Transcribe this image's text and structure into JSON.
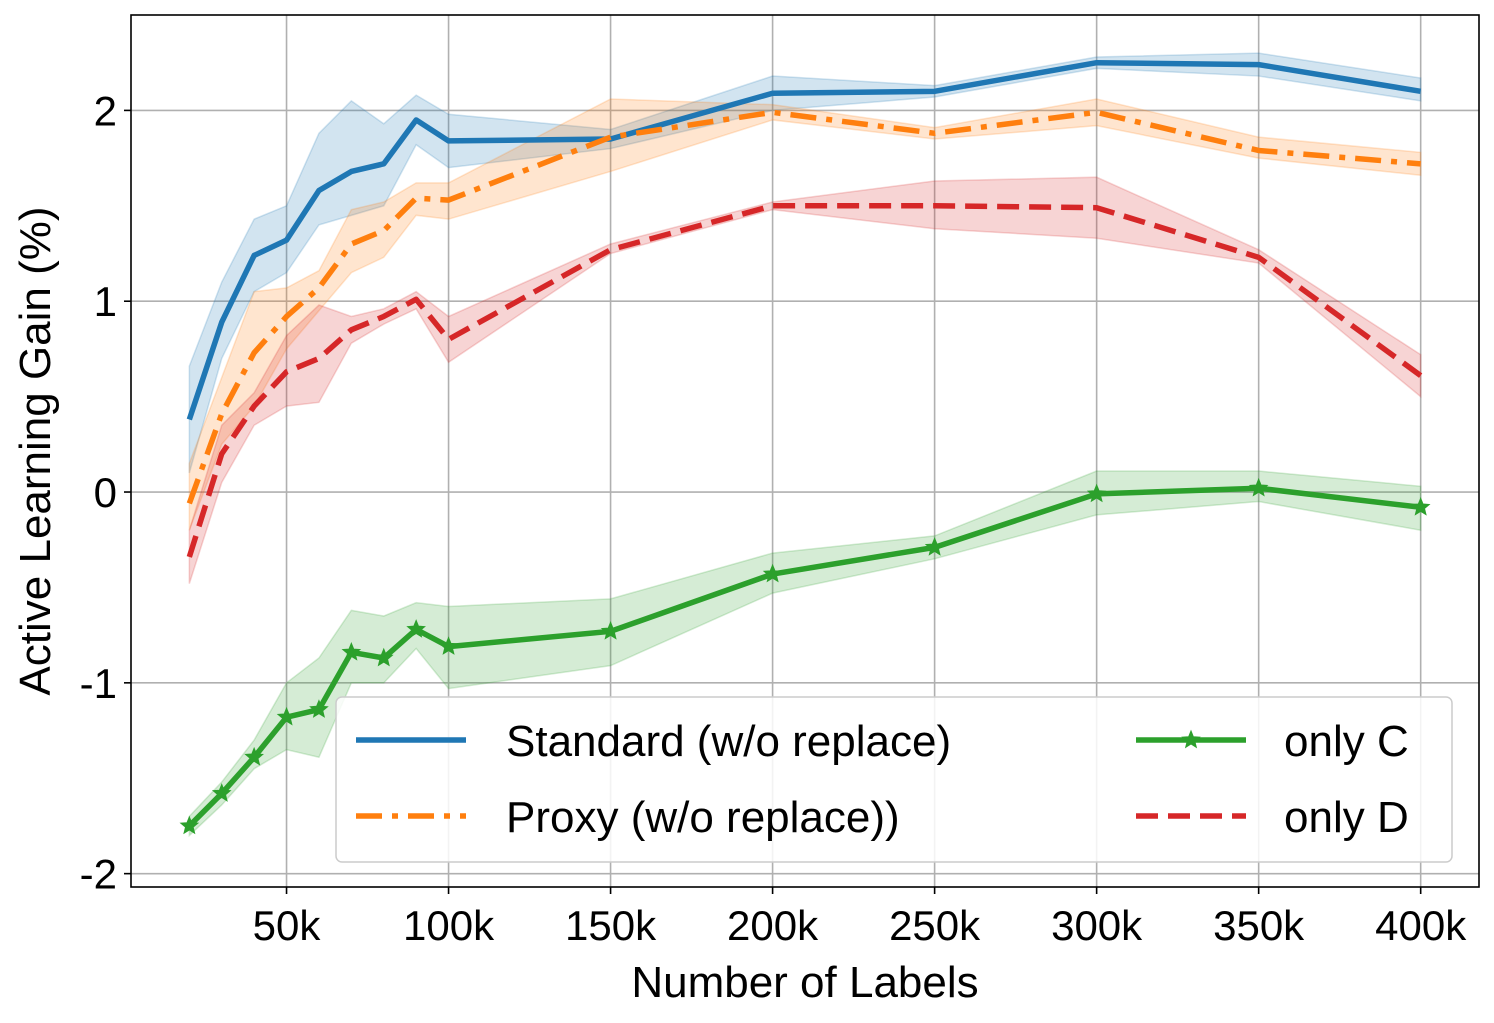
{
  "chart_data": {
    "type": "line",
    "title": "",
    "xlabel": "Number of Labels",
    "ylabel": "Active Learning Gain (%)",
    "xlim": [
      2000,
      418000
    ],
    "ylim": [
      -2.07,
      2.5
    ],
    "grid": true,
    "legend_position": "bottom-right",
    "x_ticks": [
      {
        "value": 50000,
        "label": "50k"
      },
      {
        "value": 100000,
        "label": "100k"
      },
      {
        "value": 150000,
        "label": "150k"
      },
      {
        "value": 200000,
        "label": "200k"
      },
      {
        "value": 250000,
        "label": "250k"
      },
      {
        "value": 300000,
        "label": "300k"
      },
      {
        "value": 350000,
        "label": "350k"
      },
      {
        "value": 400000,
        "label": "400k"
      }
    ],
    "y_ticks": [
      {
        "value": 2,
        "label": "2"
      },
      {
        "value": 1,
        "label": "1"
      },
      {
        "value": 0,
        "label": "0"
      },
      {
        "value": -1,
        "label": "-1"
      },
      {
        "value": -2,
        "label": "-2"
      }
    ],
    "series": [
      {
        "id": "standard",
        "name": "Standard (w/o replace)",
        "color": "#1f77b4",
        "dash": "solid",
        "marker": "none",
        "x": [
          20000,
          30000,
          40000,
          50000,
          60000,
          70000,
          80000,
          90000,
          100000,
          150000,
          200000,
          250000,
          300000,
          350000,
          400000
        ],
        "values": [
          0.38,
          0.89,
          1.24,
          1.32,
          1.58,
          1.68,
          1.72,
          1.95,
          1.84,
          1.85,
          2.09,
          2.1,
          2.25,
          2.24,
          2.1
        ],
        "lower": [
          0.1,
          0.7,
          1.05,
          1.15,
          1.4,
          1.45,
          1.5,
          1.82,
          1.7,
          1.8,
          2.0,
          2.07,
          2.22,
          2.18,
          2.05
        ],
        "upper": [
          0.66,
          1.1,
          1.43,
          1.5,
          1.88,
          2.05,
          1.93,
          2.08,
          1.98,
          1.9,
          2.18,
          2.13,
          2.28,
          2.3,
          2.17
        ]
      },
      {
        "id": "proxy",
        "name": "Proxy (w/o replace))",
        "color": "#ff7f0e",
        "dash": "dashdot",
        "marker": "none",
        "x": [
          20000,
          30000,
          40000,
          50000,
          60000,
          70000,
          80000,
          90000,
          100000,
          150000,
          200000,
          250000,
          300000,
          350000,
          400000
        ],
        "values": [
          -0.06,
          0.41,
          0.73,
          0.92,
          1.07,
          1.3,
          1.37,
          1.54,
          1.53,
          1.86,
          1.99,
          1.88,
          1.99,
          1.79,
          1.72
        ],
        "lower": [
          -0.2,
          0.25,
          0.45,
          0.75,
          0.95,
          1.15,
          1.23,
          1.45,
          1.43,
          1.68,
          1.95,
          1.85,
          1.92,
          1.75,
          1.66
        ],
        "upper": [
          0.15,
          0.6,
          1.05,
          1.07,
          1.16,
          1.48,
          1.52,
          1.62,
          1.62,
          2.06,
          2.03,
          1.91,
          2.06,
          1.86,
          1.78
        ]
      },
      {
        "id": "only_d",
        "name": "only D",
        "color": "#d62728",
        "dash": "dashed",
        "marker": "none",
        "x": [
          20000,
          30000,
          40000,
          50000,
          60000,
          70000,
          80000,
          90000,
          100000,
          150000,
          200000,
          250000,
          300000,
          350000,
          400000
        ],
        "values": [
          -0.34,
          0.2,
          0.45,
          0.63,
          0.7,
          0.85,
          0.92,
          1.01,
          0.8,
          1.27,
          1.5,
          1.5,
          1.49,
          1.23,
          0.61
        ],
        "lower": [
          -0.48,
          0.05,
          0.35,
          0.45,
          0.47,
          0.78,
          0.88,
          0.96,
          0.68,
          1.25,
          1.48,
          1.38,
          1.33,
          1.2,
          0.5
        ],
        "upper": [
          -0.2,
          0.35,
          0.52,
          0.82,
          0.98,
          0.92,
          0.96,
          1.05,
          0.92,
          1.3,
          1.52,
          1.63,
          1.65,
          1.27,
          0.72
        ]
      },
      {
        "id": "only_c",
        "name": "only C",
        "color": "#2ca02c",
        "dash": "solid",
        "marker": "star",
        "x": [
          20000,
          30000,
          40000,
          50000,
          60000,
          70000,
          80000,
          90000,
          100000,
          150000,
          200000,
          250000,
          300000,
          350000,
          400000
        ],
        "values": [
          -1.75,
          -1.58,
          -1.39,
          -1.18,
          -1.14,
          -0.84,
          -0.87,
          -0.72,
          -0.81,
          -0.73,
          -0.43,
          -0.29,
          -0.01,
          0.02,
          -0.08
        ],
        "lower": [
          -1.8,
          -1.64,
          -1.45,
          -1.35,
          -1.39,
          -1.0,
          -1.0,
          -0.82,
          -1.03,
          -0.91,
          -0.53,
          -0.35,
          -0.12,
          -0.05,
          -0.2
        ],
        "upper": [
          -1.7,
          -1.52,
          -1.3,
          -1.0,
          -0.87,
          -0.62,
          -0.65,
          -0.58,
          -0.6,
          -0.56,
          -0.32,
          -0.23,
          0.11,
          0.11,
          0.03
        ]
      }
    ],
    "legend": [
      {
        "series": "standard",
        "label": "Standard (w/o replace)"
      },
      {
        "series": "proxy",
        "label": "Proxy (w/o replace))"
      },
      {
        "series": "only_c",
        "label": "only C"
      },
      {
        "series": "only_d",
        "label": "only D"
      }
    ]
  }
}
